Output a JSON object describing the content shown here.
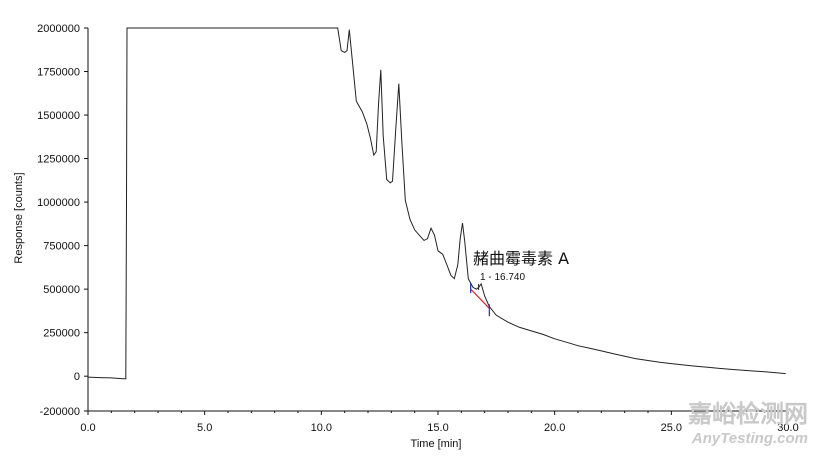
{
  "chart_data": {
    "type": "line",
    "xlabel": "Time [min]",
    "ylabel": "Response [counts]",
    "xlim": [
      0,
      30
    ],
    "ylim": [
      -200000,
      2000000
    ],
    "x_ticks": [
      0,
      5,
      10,
      15,
      20,
      25,
      30
    ],
    "x_tick_labels": [
      "0.0",
      "5.0",
      "10.0",
      "15.0",
      "20.0",
      "25.0",
      "30.0"
    ],
    "y_ticks": [
      -200000,
      0,
      250000,
      500000,
      750000,
      1000000,
      1250000,
      1500000,
      1750000,
      2000000
    ],
    "y_tick_labels": [
      "-200000",
      "0",
      "250000",
      "500000",
      "750000",
      "1000000",
      "1250000",
      "1500000",
      "1750000",
      "2000000"
    ],
    "grid": false,
    "series": [
      {
        "color": "#222222",
        "points": [
          [
            0.0,
            -5000
          ],
          [
            0.5,
            -8000
          ],
          [
            1.0,
            -10000
          ],
          [
            1.5,
            -15000
          ],
          [
            1.62,
            -15000
          ],
          [
            1.65,
            1000000
          ],
          [
            1.67,
            2000000
          ],
          [
            10.7,
            2000000
          ],
          [
            10.85,
            1870000
          ],
          [
            11.0,
            1860000
          ],
          [
            11.1,
            1870000
          ],
          [
            11.2,
            1990000
          ],
          [
            11.3,
            1850000
          ],
          [
            11.5,
            1580000
          ],
          [
            11.75,
            1520000
          ],
          [
            11.95,
            1450000
          ],
          [
            12.1,
            1370000
          ],
          [
            12.25,
            1270000
          ],
          [
            12.35,
            1290000
          ],
          [
            12.45,
            1560000
          ],
          [
            12.55,
            1760000
          ],
          [
            12.65,
            1380000
          ],
          [
            12.8,
            1130000
          ],
          [
            12.95,
            1110000
          ],
          [
            13.05,
            1120000
          ],
          [
            13.2,
            1440000
          ],
          [
            13.32,
            1680000
          ],
          [
            13.45,
            1350000
          ],
          [
            13.6,
            1010000
          ],
          [
            13.8,
            900000
          ],
          [
            14.0,
            840000
          ],
          [
            14.2,
            810000
          ],
          [
            14.4,
            780000
          ],
          [
            14.55,
            790000
          ],
          [
            14.7,
            850000
          ],
          [
            14.85,
            810000
          ],
          [
            15.0,
            720000
          ],
          [
            15.2,
            700000
          ],
          [
            15.35,
            650000
          ],
          [
            15.55,
            580000
          ],
          [
            15.7,
            560000
          ],
          [
            15.85,
            640000
          ],
          [
            15.95,
            790000
          ],
          [
            16.05,
            880000
          ],
          [
            16.15,
            770000
          ],
          [
            16.3,
            560000
          ],
          [
            16.5,
            510000
          ],
          [
            16.65,
            500000
          ],
          [
            16.74,
            510000
          ],
          [
            16.85,
            530000
          ],
          [
            17.0,
            460000
          ],
          [
            17.2,
            400000
          ],
          [
            17.5,
            350000
          ],
          [
            18.0,
            310000
          ],
          [
            18.5,
            280000
          ],
          [
            19.0,
            260000
          ],
          [
            19.5,
            240000
          ],
          [
            20.0,
            215000
          ],
          [
            20.5,
            195000
          ],
          [
            21.0,
            175000
          ],
          [
            21.5,
            160000
          ],
          [
            22.0,
            145000
          ],
          [
            22.5,
            130000
          ],
          [
            23.0,
            115000
          ],
          [
            23.5,
            100000
          ],
          [
            24.0,
            90000
          ],
          [
            24.5,
            80000
          ],
          [
            25.0,
            72000
          ],
          [
            25.5,
            65000
          ],
          [
            26.0,
            58000
          ],
          [
            26.5,
            52000
          ],
          [
            27.0,
            45000
          ],
          [
            27.5,
            40000
          ],
          [
            28.0,
            35000
          ],
          [
            28.5,
            30000
          ],
          [
            29.0,
            25000
          ],
          [
            29.5,
            20000
          ],
          [
            29.9,
            15000
          ]
        ]
      }
    ],
    "peak": {
      "compound_label": "赭曲霉毒素 A",
      "retention_label": "1 - 16.740",
      "retention_time": 16.74,
      "baseline_start": [
        16.4,
        500000
      ],
      "baseline_end": [
        17.2,
        390000
      ],
      "baseline_color": "#e02020",
      "marker_color": "#2030c0"
    }
  },
  "watermark": {
    "chinese": "嘉峪检测网",
    "english": "AnyTesting.com"
  }
}
